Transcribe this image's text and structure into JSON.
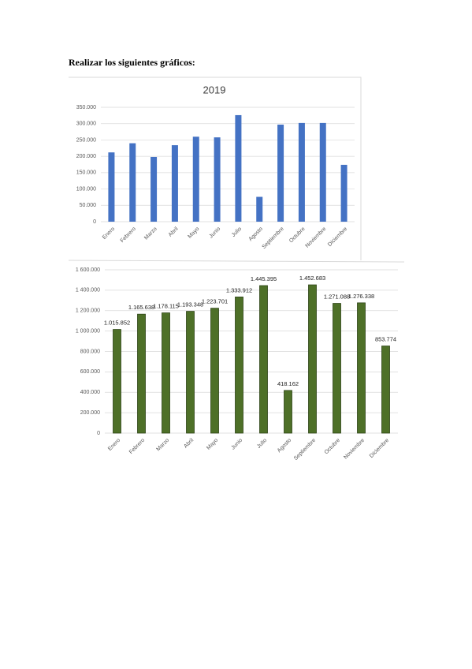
{
  "heading": "Realizar los siguientes gráficos:",
  "chart_data": [
    {
      "type": "bar",
      "title": "2019",
      "categories": [
        "Enero",
        "Febrero",
        "Marzo",
        "Abril",
        "Mayo",
        "Junio",
        "Julio",
        "Agosto",
        "Septiembre",
        "Octubre",
        "Noviembre",
        "Diciembre"
      ],
      "values": [
        212000,
        240000,
        198000,
        234000,
        260000,
        258000,
        326000,
        76000,
        297000,
        302000,
        302000,
        174000
      ],
      "color": "#4472c4",
      "ylim": [
        0,
        350000
      ],
      "yticks": [
        0,
        {
          "value": 50000,
          "label": "50.000"
        },
        {
          "value": 100000,
          "label": "100.000"
        },
        {
          "value": 150000,
          "label": "150.000"
        },
        {
          "value": 200000,
          "label": "200.000"
        },
        {
          "value": 250000,
          "label": "250.000"
        },
        {
          "value": 300000,
          "label": "300.000"
        },
        {
          "value": 350000,
          "label": "350.000"
        }
      ],
      "grid": true
    },
    {
      "type": "bar",
      "categories": [
        "Enero",
        "Febrero",
        "Marzo",
        "Abril",
        "Mayo",
        "Junio",
        "Julio",
        "Agosto",
        "Septiembre",
        "Octubre",
        "Noviembre",
        "Diciembre"
      ],
      "values": [
        1015852,
        1165638,
        1178115,
        1193348,
        1223701,
        1333912,
        1445395,
        418162,
        1452683,
        1271088,
        1276338,
        853774
      ],
      "value_labels": [
        "1.015.852",
        "1.165.638",
        "1.178.115",
        "1.193.348",
        "1.223.701",
        "1.333.912",
        "1.445.395",
        "418.162",
        "1.452.683",
        "1.271.088",
        "1.276.338",
        "853.774"
      ],
      "color": "#4e7028",
      "ylim": [
        0,
        1600000
      ],
      "yticks": [
        0,
        {
          "value": 200000,
          "label": "200.000"
        },
        {
          "value": 400000,
          "label": "400.000"
        },
        {
          "value": 600000,
          "label": "600.000"
        },
        {
          "value": 800000,
          "label": "800.000"
        },
        {
          "value": 1000000,
          "label": "1 000.000"
        },
        {
          "value": 1200000,
          "label": "1 200.000"
        },
        {
          "value": 1400000,
          "label": "1 400.000"
        },
        {
          "value": 1600000,
          "label": "1 600.000"
        }
      ],
      "grid": true
    }
  ]
}
